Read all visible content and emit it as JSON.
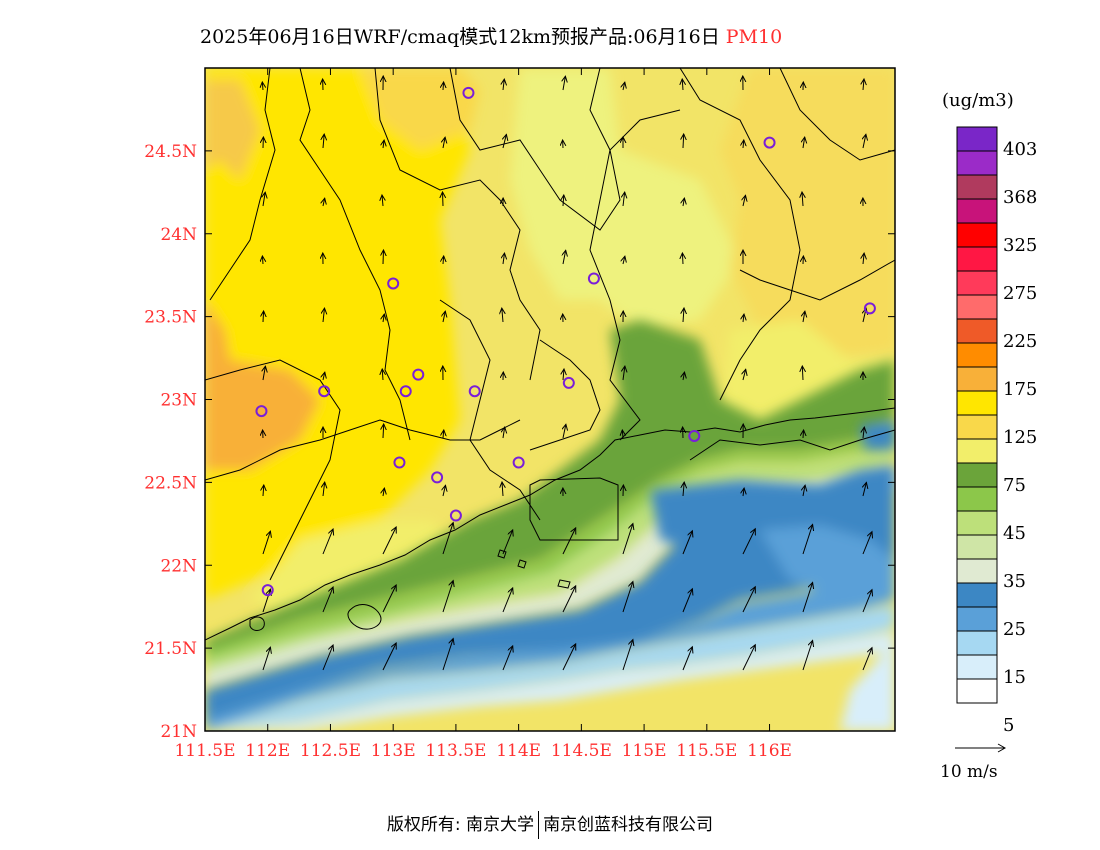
{
  "title": {
    "prefix": "2025年06月16日WRF/cmaq模式12km预报产品:06月16日",
    "product": "PM10"
  },
  "axes": {
    "lon_labels": [
      "111.5E",
      "112E",
      "112.5E",
      "113E",
      "113.5E",
      "114E",
      "114.5E",
      "115E",
      "115.5E",
      "116E"
    ],
    "lat_labels": [
      "24.5N",
      "24N",
      "23.5N",
      "23N",
      "22.5N",
      "22N",
      "21.5N",
      "21N"
    ],
    "lon_values": [
      111.5,
      112,
      112.5,
      113,
      113.5,
      114,
      114.5,
      115,
      115.5,
      116
    ],
    "lat_values": [
      24.5,
      24,
      23.5,
      23,
      22.5,
      22,
      21.5,
      21
    ],
    "lon_range": [
      111.5,
      117.0
    ],
    "lat_range": [
      21.0,
      25.0
    ],
    "tick_color": "#ff3030"
  },
  "legend": {
    "unit": "(ug/m3)",
    "labels": [
      "403",
      "368",
      "325",
      "275",
      "225",
      "175",
      "125",
      "75",
      "45",
      "35",
      "25",
      "15",
      "5"
    ],
    "colors_top_to_bottom": [
      "#7a26c8",
      "#9b2bc8",
      "#b03a5e",
      "#c8137a",
      "#ff0000",
      "#ff1744",
      "#ff3a5a",
      "#ff6b6b",
      "#ef5a28",
      "#ff8c00",
      "#f8b039",
      "#ffe600",
      "#f9d84a",
      "#f2ee6a",
      "#6ba43a",
      "#8cc74a",
      "#bde07a",
      "#cfe5a6",
      "#e0ead2",
      "#3c87c4",
      "#5aa0d8",
      "#a6d8f2",
      "#d8eefa",
      "#ffffff"
    ]
  },
  "vector_reference": {
    "label": "10 m/s"
  },
  "footer": {
    "left": "版权所有: 南京大学",
    "right": "南京创蓝科技有限公司"
  },
  "stations": [
    [
      112.0,
      21.85
    ],
    [
      111.95,
      22.93
    ],
    [
      112.45,
      23.05
    ],
    [
      113.0,
      23.7
    ],
    [
      113.1,
      23.05
    ],
    [
      113.2,
      23.15
    ],
    [
      113.05,
      22.62
    ],
    [
      113.35,
      22.53
    ],
    [
      113.5,
      22.3
    ],
    [
      113.65,
      23.05
    ],
    [
      114.0,
      22.62
    ],
    [
      114.4,
      23.1
    ],
    [
      114.6,
      23.73
    ],
    [
      113.6,
      24.85
    ],
    [
      116.0,
      24.55
    ],
    [
      116.8,
      23.55
    ],
    [
      115.4,
      22.78
    ]
  ]
}
